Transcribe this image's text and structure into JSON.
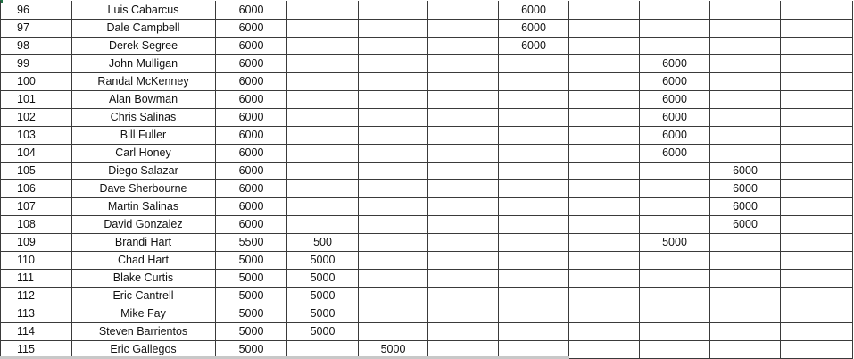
{
  "table": {
    "rows": [
      [
        96,
        "Luis Cabarcus",
        6000,
        null,
        null,
        null,
        6000,
        null,
        null,
        null,
        null
      ],
      [
        97,
        "Dale Campbell",
        6000,
        null,
        null,
        null,
        6000,
        null,
        null,
        null,
        null
      ],
      [
        98,
        "Derek Segree",
        6000,
        null,
        null,
        null,
        6000,
        null,
        null,
        null,
        null
      ],
      [
        99,
        "John Mulligan",
        6000,
        null,
        null,
        null,
        null,
        null,
        6000,
        null,
        null
      ],
      [
        100,
        "Randal McKenney",
        6000,
        null,
        null,
        null,
        null,
        null,
        6000,
        null,
        null
      ],
      [
        101,
        "Alan Bowman",
        6000,
        null,
        null,
        null,
        null,
        null,
        6000,
        null,
        null
      ],
      [
        102,
        "Chris Salinas",
        6000,
        null,
        null,
        null,
        null,
        null,
        6000,
        null,
        null
      ],
      [
        103,
        "Bill Fuller",
        6000,
        null,
        null,
        null,
        null,
        null,
        6000,
        null,
        null
      ],
      [
        104,
        "Carl Honey",
        6000,
        null,
        null,
        null,
        null,
        null,
        6000,
        null,
        null
      ],
      [
        105,
        "Diego Salazar",
        6000,
        null,
        null,
        null,
        null,
        null,
        null,
        6000,
        null
      ],
      [
        106,
        "Dave Sherbourne",
        6000,
        null,
        null,
        null,
        null,
        null,
        null,
        6000,
        null
      ],
      [
        107,
        "Martin Salinas",
        6000,
        null,
        null,
        null,
        null,
        null,
        null,
        6000,
        null
      ],
      [
        108,
        "David Gonzalez",
        6000,
        null,
        null,
        null,
        null,
        null,
        null,
        6000,
        null
      ],
      [
        109,
        "Brandi Hart",
        5500,
        500,
        null,
        null,
        null,
        null,
        5000,
        null,
        null
      ],
      [
        110,
        "Chad Hart",
        5000,
        5000,
        null,
        null,
        null,
        null,
        null,
        null,
        null
      ],
      [
        111,
        "Blake Curtis",
        5000,
        5000,
        null,
        null,
        null,
        null,
        null,
        null,
        null
      ],
      [
        112,
        "Eric Cantrell",
        5000,
        5000,
        null,
        null,
        null,
        null,
        null,
        null,
        null
      ],
      [
        113,
        "Mike Fay",
        5000,
        5000,
        null,
        null,
        null,
        null,
        null,
        null,
        null
      ],
      [
        114,
        "Steven Barrientos",
        5000,
        5000,
        null,
        null,
        null,
        null,
        null,
        null,
        null
      ],
      [
        115,
        "Eric Gallegos",
        5000,
        null,
        5000,
        null,
        null,
        null,
        null,
        null,
        null
      ]
    ]
  }
}
